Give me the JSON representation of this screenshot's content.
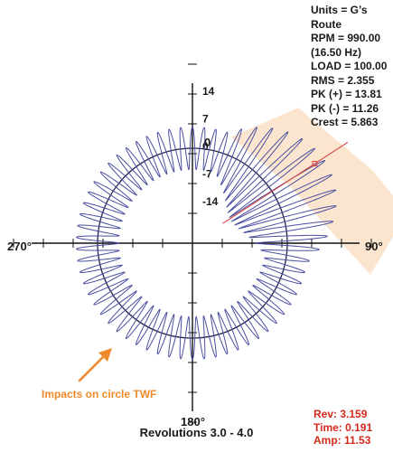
{
  "info_panel": [
    "Units = G’s",
    "Route",
    "RPM = 990.00",
    "(16.50 Hz)",
    "LOAD = 100.00",
    "RMS = 2.355",
    "PK (+) = 13.81",
    "PK (-) = 11.26",
    "Crest = 5.863"
  ],
  "cursor_readout": {
    "rev": "Rev: 3.159",
    "time": "Time: 0.191",
    "amp": "Amp: 11.53"
  },
  "annotation": {
    "text": "Impacts on circle TWF"
  },
  "angle_labels": {
    "top": "0",
    "right": "90°",
    "bottom": "180°",
    "left": "270°"
  },
  "footer": {
    "revolutions": "Revolutions 3.0 - 4.0"
  },
  "colors": {
    "waveform": "#4a4fa0",
    "circle": "#1f2548",
    "axes": "#111111",
    "highlight_fill": "#fbe2c9",
    "cursor_line": "#d84040",
    "annotation": "#ef8a2c",
    "cursor_text": "#d42a1c"
  },
  "chart_data": {
    "type": "polar-line",
    "title": "",
    "radial_ticks": [
      14,
      7,
      0,
      -7,
      -14
    ],
    "angle_labels": [
      "0",
      "90°",
      "180°",
      "270°"
    ],
    "revolutions": [
      3.0,
      4.0
    ],
    "series": [
      {
        "name": "",
        "base_amplitude": 4.8,
        "spike_count": 62,
        "impact_zone_deg": [
          18,
          100
        ],
        "impact_peak_amplitude": 13.81,
        "impact_min_amplitude": -11.26
      }
    ],
    "cursor": {
      "angle_deg": 57,
      "rev": 3.159,
      "time": 0.191,
      "amp": 11.53
    }
  }
}
